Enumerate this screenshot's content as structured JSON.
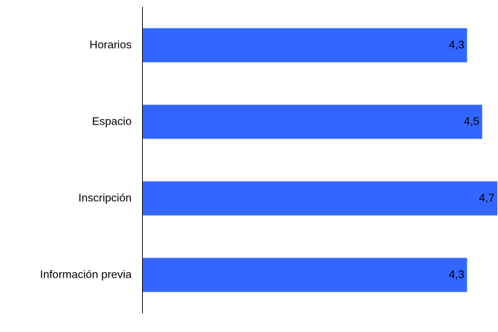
{
  "chart_data": {
    "type": "bar",
    "orientation": "horizontal",
    "categories": [
      "Horarios",
      "Espacio",
      "Inscripción",
      "Información previa"
    ],
    "values": [
      4.3,
      4.5,
      4.7,
      4.3
    ],
    "value_labels": [
      "4,3",
      "4,5",
      "4,7",
      "4,3"
    ],
    "title": "",
    "xlabel": "",
    "ylabel": "",
    "xlim": [
      0,
      4.7
    ],
    "grid": false,
    "legend": "none",
    "bar_color": "#3366ff",
    "axis_color": "#000000"
  }
}
